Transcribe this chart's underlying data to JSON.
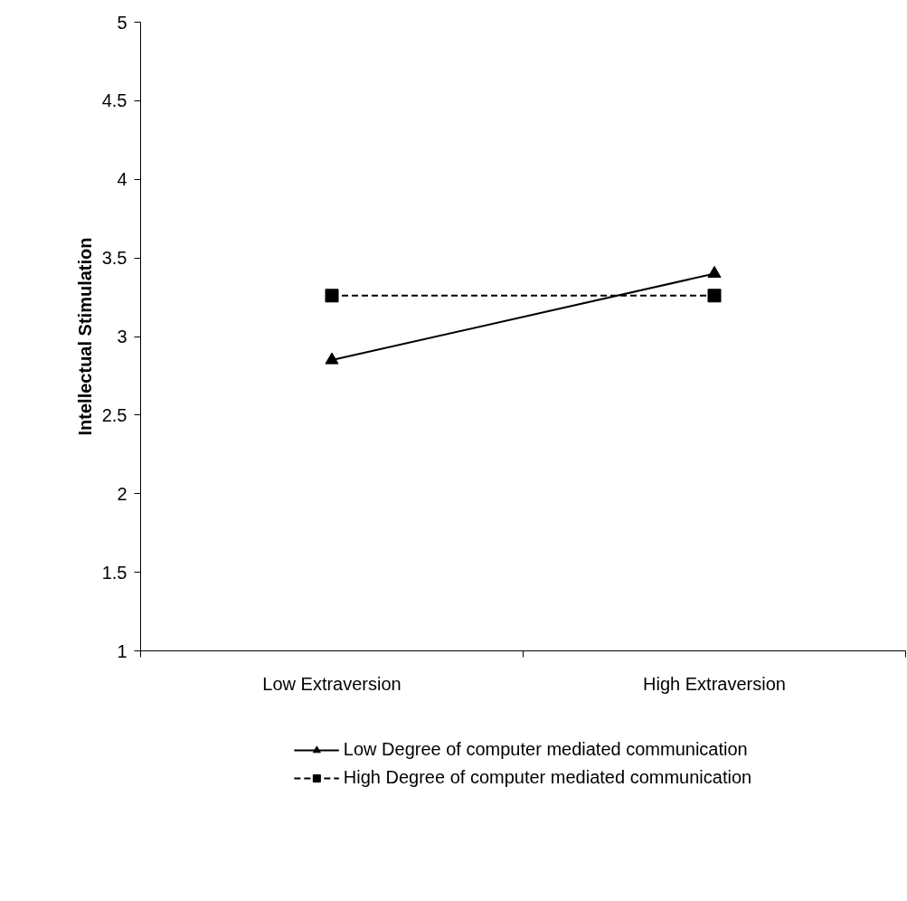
{
  "chart_data": {
    "type": "line",
    "ylabel": "Intellectual Stimulation",
    "categories": [
      "Low Extraversion",
      "High Extraversion"
    ],
    "series": [
      {
        "name": "Low Degree of computer mediated communication",
        "color": "#000000",
        "values": [
          2.85,
          3.4
        ],
        "marker": "triangle",
        "line_style": "solid"
      },
      {
        "name": "High Degree of computer mediated communication",
        "color": "#000000",
        "values": [
          3.26,
          3.26
        ],
        "marker": "square",
        "line_style": "dashed"
      }
    ],
    "ylim": [
      1,
      5
    ],
    "yticks": [
      1,
      1.5,
      2,
      2.5,
      3,
      3.5,
      4,
      4.5,
      5
    ],
    "grid": false,
    "legend": "bottom"
  }
}
